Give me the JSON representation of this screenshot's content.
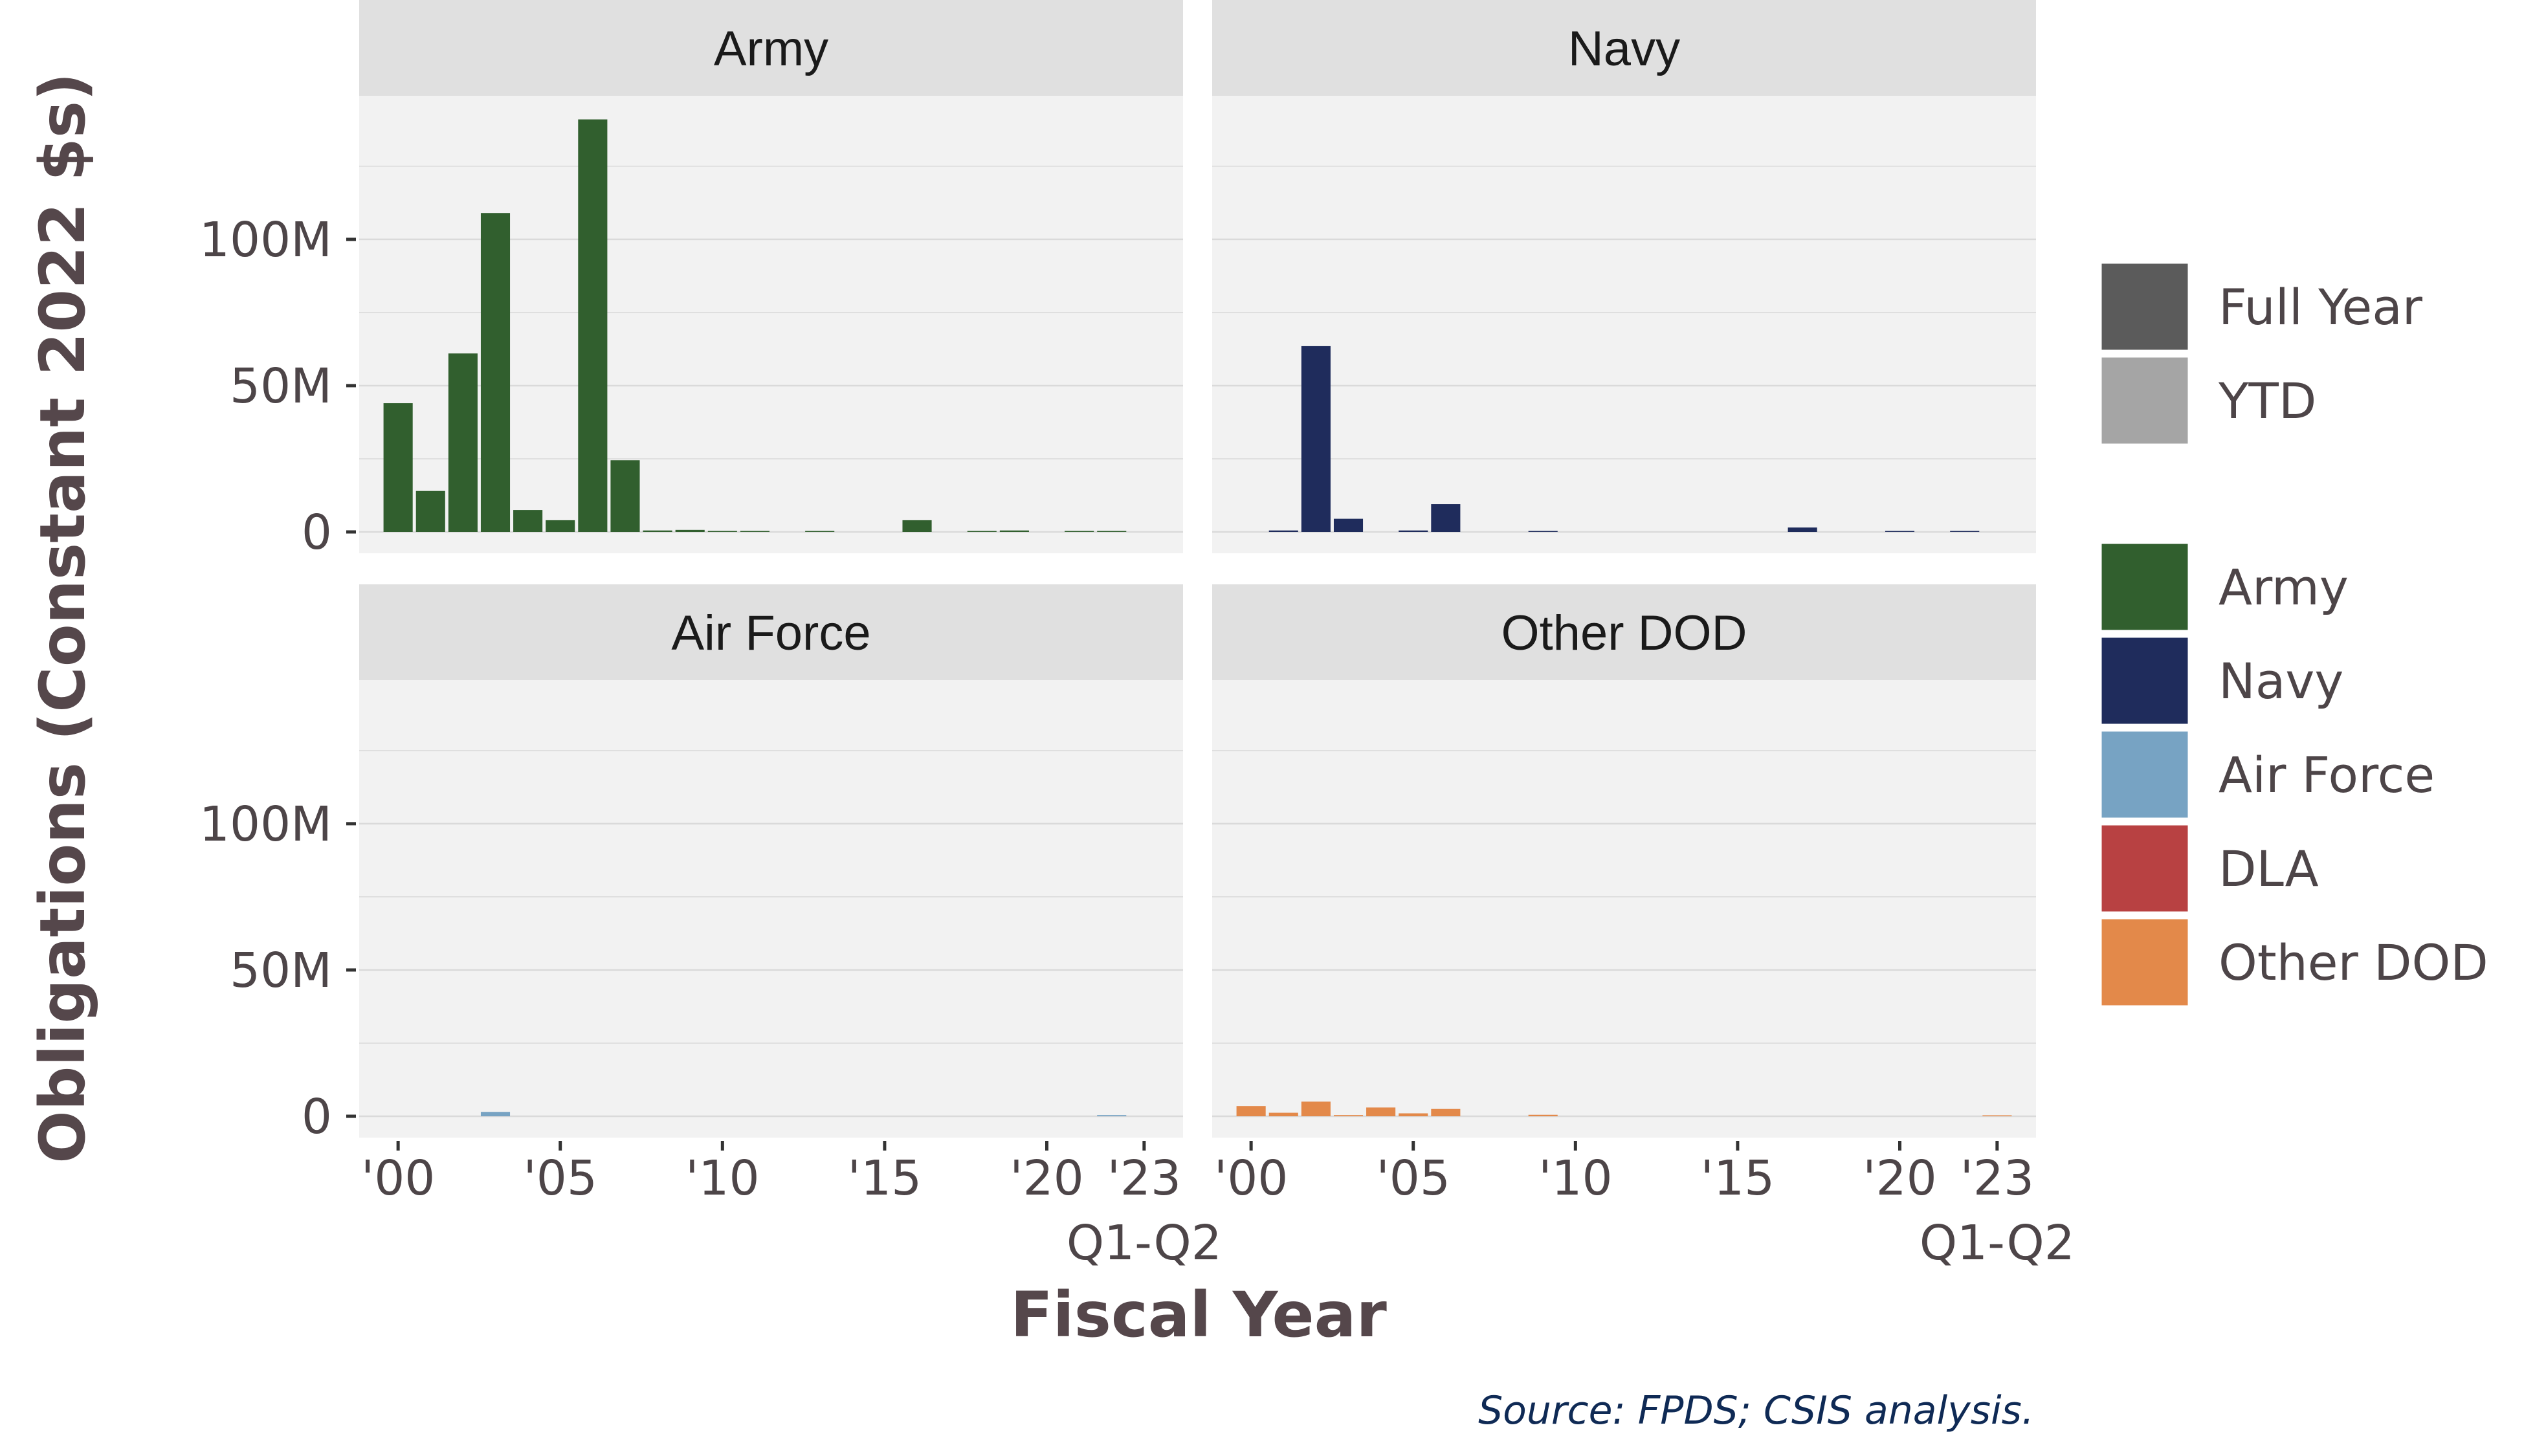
{
  "chart_data": {
    "type": "bar",
    "layout": "facet-grid-2x2",
    "ylabel": "Obligations (Constant 2022 $s)",
    "xlabel": "Fiscal Year",
    "caption": "Source: FPDS; CSIS analysis.",
    "ylim": [
      0,
      142000000
    ],
    "y_ticks": [
      {
        "value": 0,
        "label": "0"
      },
      {
        "value": 50000000,
        "label": "50M"
      },
      {
        "value": 100000000,
        "label": "100M"
      }
    ],
    "x_range": [
      1998.8,
      2024.2
    ],
    "x_ticks": [
      {
        "value": 2000,
        "label": "'00"
      },
      {
        "value": 2005,
        "label": "'05"
      },
      {
        "value": 2010,
        "label": "'10"
      },
      {
        "value": 2015,
        "label": "'15"
      },
      {
        "value": 2020,
        "label": "'20"
      },
      {
        "value": 2023,
        "label": "'23"
      }
    ],
    "x_tick_sublabel": {
      "value": 2023,
      "label": "Q1-Q2"
    },
    "grid": true,
    "panels": [
      {
        "title": "Army",
        "color": "#315f2e",
        "values": [
          {
            "x": 2000,
            "y": 44000000
          },
          {
            "x": 2001,
            "y": 14000000
          },
          {
            "x": 2002,
            "y": 61000000
          },
          {
            "x": 2003,
            "y": 109000000
          },
          {
            "x": 2004,
            "y": 7500000
          },
          {
            "x": 2005,
            "y": 4000000
          },
          {
            "x": 2006,
            "y": 141000000
          },
          {
            "x": 2007,
            "y": 24500000
          },
          {
            "x": 2008,
            "y": 500000
          },
          {
            "x": 2009,
            "y": 700000
          },
          {
            "x": 2010,
            "y": 200000
          },
          {
            "x": 2011,
            "y": 100000
          },
          {
            "x": 2013,
            "y": 100000
          },
          {
            "x": 2016,
            "y": 4000000
          },
          {
            "x": 2018,
            "y": 200000
          },
          {
            "x": 2019,
            "y": 500000
          },
          {
            "x": 2021,
            "y": 300000
          },
          {
            "x": 2022,
            "y": 200000
          }
        ]
      },
      {
        "title": "Navy",
        "color": "#1f2c5c",
        "values": [
          {
            "x": 2001,
            "y": 500000
          },
          {
            "x": 2002,
            "y": 63500000
          },
          {
            "x": 2003,
            "y": 4500000
          },
          {
            "x": 2005,
            "y": 500000
          },
          {
            "x": 2006,
            "y": 9500000
          },
          {
            "x": 2009,
            "y": 100000
          },
          {
            "x": 2017,
            "y": 1500000
          },
          {
            "x": 2020,
            "y": 300000
          },
          {
            "x": 2022,
            "y": 200000
          }
        ]
      },
      {
        "title": "Air Force",
        "color": "#77a3c3",
        "values": [
          {
            "x": 2003,
            "y": 1500000
          },
          {
            "x": 2022,
            "y": 400000
          }
        ]
      },
      {
        "title": "Other DOD",
        "color": "#e3894a",
        "values": [
          {
            "x": 2000,
            "y": 3500000
          },
          {
            "x": 2001,
            "y": 1200000
          },
          {
            "x": 2002,
            "y": 5000000
          },
          {
            "x": 2003,
            "y": 400000
          },
          {
            "x": 2004,
            "y": 3000000
          },
          {
            "x": 2005,
            "y": 1000000
          },
          {
            "x": 2006,
            "y": 2500000
          },
          {
            "x": 2009,
            "y": 500000
          },
          {
            "x": 2023,
            "y": 200000
          }
        ]
      }
    ],
    "legend": {
      "position": "right",
      "groups": [
        [
          {
            "label": "Full Year",
            "color": "#5b5b5b"
          },
          {
            "label": "YTD",
            "color": "#a5a5a5"
          }
        ],
        [
          {
            "label": "Army",
            "color": "#315f2e"
          },
          {
            "label": "Navy",
            "color": "#1f2c5c"
          },
          {
            "label": "Air Force",
            "color": "#77a3c3"
          },
          {
            "label": "DLA",
            "color": "#b84142"
          },
          {
            "label": "Other DOD",
            "color": "#e3894a"
          }
        ]
      ]
    },
    "colors": {
      "panel_background": "#f2f2f2",
      "strip_background": "#e0e0e0",
      "gridline": "#dadada"
    }
  }
}
